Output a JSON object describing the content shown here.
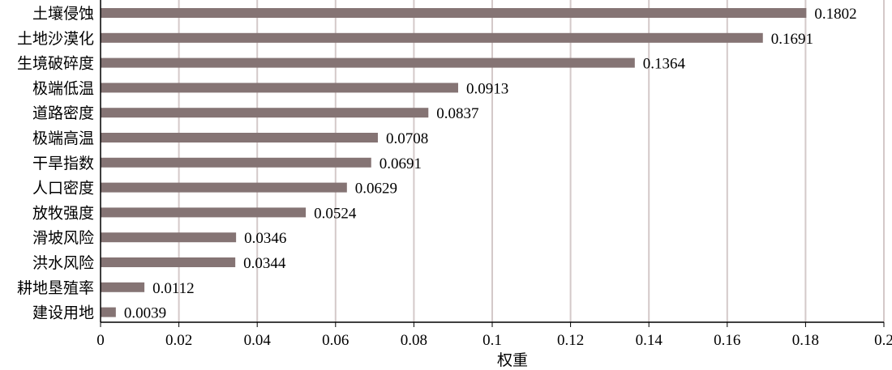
{
  "chart_data": {
    "type": "bar",
    "orientation": "horizontal",
    "categories": [
      "土壤侵蚀",
      "土地沙漠化",
      "生境破碎度",
      "极端低温",
      "道路密度",
      "极端高温",
      "干旱指数",
      "人口密度",
      "放牧强度",
      "滑坡风险",
      "洪水风险",
      "耕地垦殖率",
      "建设用地"
    ],
    "values": [
      0.1802,
      0.1691,
      0.1364,
      0.0913,
      0.0837,
      0.0708,
      0.0691,
      0.0629,
      0.0524,
      0.0346,
      0.0344,
      0.0112,
      0.0039
    ],
    "value_labels": [
      "0.1802",
      "0.1691",
      "0.1364",
      "0.0913",
      "0.0837",
      "0.0708",
      "0.0691",
      "0.0629",
      "0.0524",
      "0.0346",
      "0.0344",
      "0.0112",
      "0.0039"
    ],
    "xlabel": "权重",
    "ylabel": "",
    "xlim": [
      0,
      0.2
    ],
    "xticks": [
      0,
      0.02,
      0.04,
      0.06,
      0.08,
      0.1,
      0.12,
      0.14,
      0.16,
      0.18,
      0.2
    ],
    "xtick_labels": [
      "0",
      "0.02",
      "0.04",
      "0.06",
      "0.08",
      "0.1",
      "0.12",
      "0.14",
      "0.16",
      "0.18",
      "0.2"
    ],
    "grid": "vertical",
    "bar_color": "#857474",
    "grid_color": "#d4c9c9",
    "axis_color": "#000000"
  }
}
